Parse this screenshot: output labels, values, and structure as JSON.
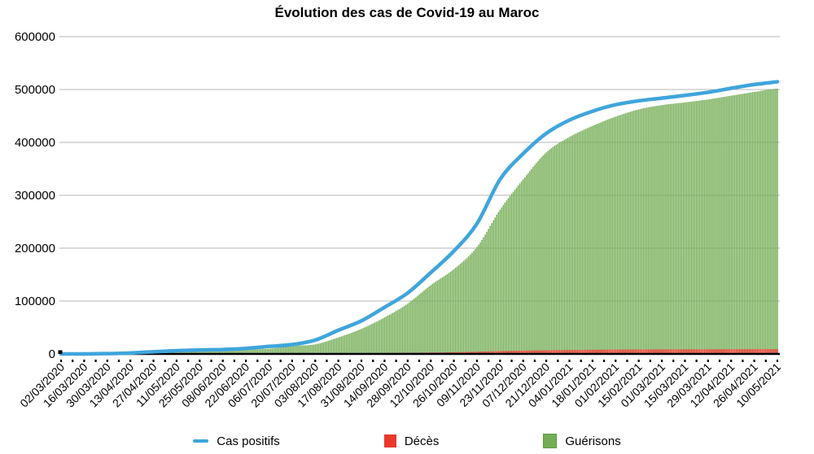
{
  "chart_data": {
    "type": "bar",
    "title": "Évolution des cas de Covid-19 au Maroc",
    "xlabel": "",
    "ylabel": "",
    "ylim": [
      0,
      600000
    ],
    "y_ticks": [
      0,
      100000,
      200000,
      300000,
      400000,
      500000,
      600000
    ],
    "grid": true,
    "legend_position": "bottom",
    "categories": [
      "02/03/2020",
      "16/03/2020",
      "30/03/2020",
      "13/04/2020",
      "27/04/2020",
      "11/05/2020",
      "25/05/2020",
      "08/06/2020",
      "22/06/2020",
      "06/07/2020",
      "20/07/2020",
      "03/08/2020",
      "17/08/2020",
      "31/08/2020",
      "14/09/2020",
      "28/09/2020",
      "12/10/2020",
      "26/10/2020",
      "09/11/2020",
      "23/11/2020",
      "07/12/2020",
      "21/12/2020",
      "04/01/2021",
      "18/01/2021",
      "01/02/2021",
      "15/02/2021",
      "01/03/2021",
      "15/03/2021",
      "29/03/2021",
      "12/04/2021",
      "26/04/2021",
      "10/05/2021"
    ],
    "series": [
      {
        "name": "Cas positifs",
        "type": "line",
        "color": "#3fa5dc",
        "values": [
          1,
          37,
          600,
          1800,
          4100,
          6100,
          7500,
          8300,
          10300,
          14200,
          17700,
          26200,
          44800,
          62600,
          88200,
          115200,
          153800,
          194500,
          246400,
          330100,
          378800,
          417100,
          442100,
          458900,
          471200,
          478600,
          483700,
          488900,
          494700,
          502300,
          509400,
          514700
        ]
      },
      {
        "name": "Décès",
        "type": "bar",
        "color": "#e8392c",
        "values": [
          0,
          1,
          36,
          130,
          160,
          190,
          200,
          210,
          215,
          235,
          280,
          400,
          680,
          1140,
          1610,
          2040,
          2640,
          3260,
          4130,
          5410,
          6250,
          6960,
          7450,
          7910,
          8290,
          8520,
          8620,
          8720,
          8810,
          8920,
          9000,
          9090
        ]
      },
      {
        "name": "Guérisons",
        "type": "bar",
        "color": "#74ad55",
        "border": "#5f9b41",
        "values": [
          0,
          1,
          15,
          130,
          930,
          2550,
          4570,
          7400,
          8400,
          9800,
          15200,
          18100,
          31200,
          47400,
          69000,
          95100,
          130000,
          160400,
          202300,
          272800,
          330200,
          381100,
          410100,
          431200,
          448600,
          462400,
          470500,
          475600,
          481200,
          488300,
          495300,
          501700
        ]
      }
    ],
    "colors": {
      "gridline": "#b7b7b7",
      "axis": "#000000",
      "text": "#000000",
      "background": "#ffffff"
    }
  }
}
